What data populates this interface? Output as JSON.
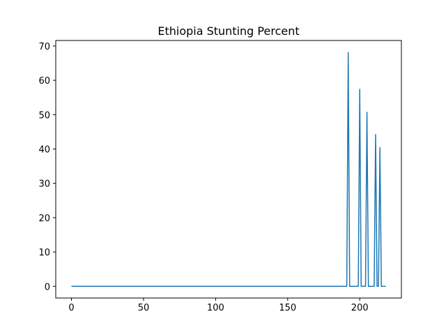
{
  "chart_data": {
    "type": "line",
    "title": "Ethiopia Stunting Percent",
    "xlabel": "",
    "ylabel": "",
    "xlim": [
      -10.9,
      228.9
    ],
    "ylim": [
      -3.4,
      71.6
    ],
    "xticks": [
      0,
      50,
      100,
      150,
      200
    ],
    "yticks": [
      0,
      10,
      20,
      30,
      40,
      50,
      60,
      70
    ],
    "grid": false,
    "color": "#1f77b4",
    "series": [
      {
        "name": "Ethiopia Stunting Percent",
        "x": [
          0,
          191,
          192,
          193,
          199,
          200,
          201,
          204,
          205,
          206,
          210,
          211,
          212,
          213,
          214,
          215,
          218
        ],
        "y": [
          0,
          0,
          68.1,
          0,
          0,
          57.4,
          0,
          0,
          50.7,
          0,
          0,
          44.2,
          0,
          0,
          40.4,
          0,
          0
        ]
      }
    ]
  }
}
